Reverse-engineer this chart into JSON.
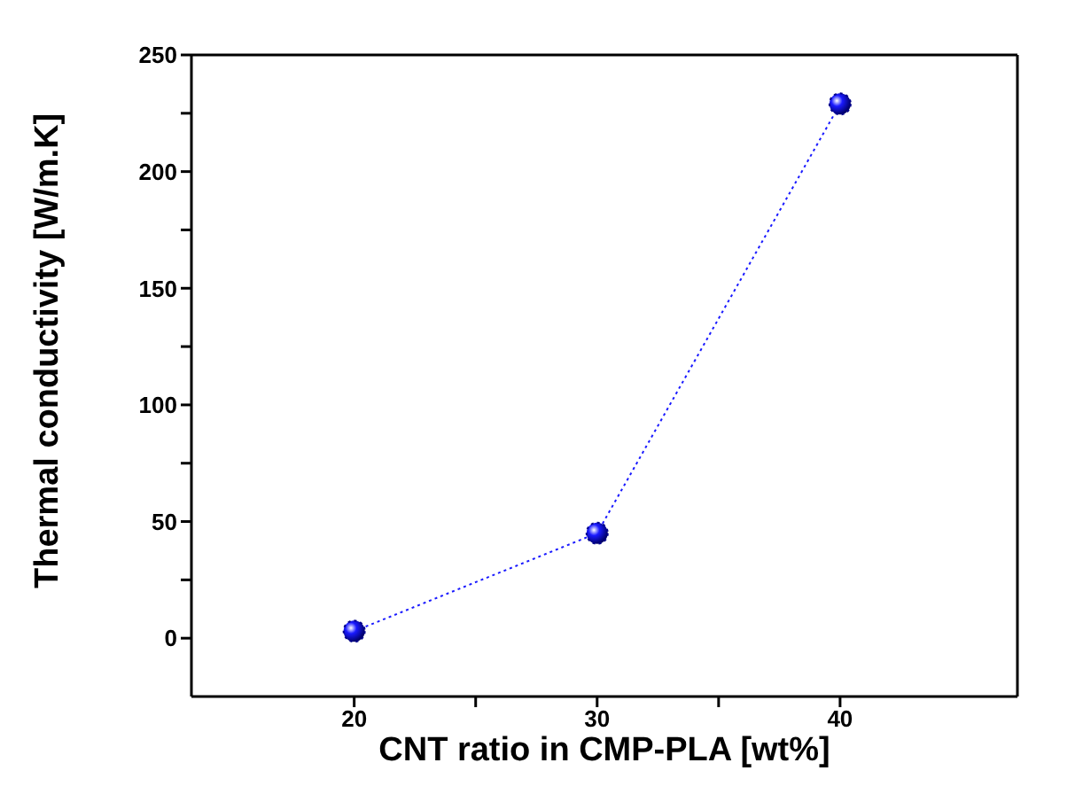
{
  "chart_data": {
    "type": "line",
    "xlabel": "CNT ratio in CMP-PLA [wt%]",
    "ylabel": "Thermal conductivity [W/m.K]",
    "x": [
      20,
      30,
      40
    ],
    "series": [
      {
        "color": "#1a1aff",
        "values": [
          3,
          45,
          229
        ]
      }
    ],
    "xlim": [
      13.3,
      47.3
    ],
    "xticks": [
      20,
      {
        "value": 25,
        "label": null
      },
      30,
      {
        "value": 35,
        "label": null
      },
      40
    ],
    "ylim": [
      -25,
      250
    ],
    "yticks": [
      0,
      {
        "value": 25,
        "label": null
      },
      50,
      {
        "value": 75,
        "label": null
      },
      100,
      {
        "value": 125,
        "label": null
      },
      150,
      {
        "value": 175,
        "label": null
      },
      200,
      {
        "value": 225,
        "label": null
      },
      250
    ],
    "grid": false,
    "legend": false,
    "marker": "circle",
    "line_style": "dotted"
  }
}
